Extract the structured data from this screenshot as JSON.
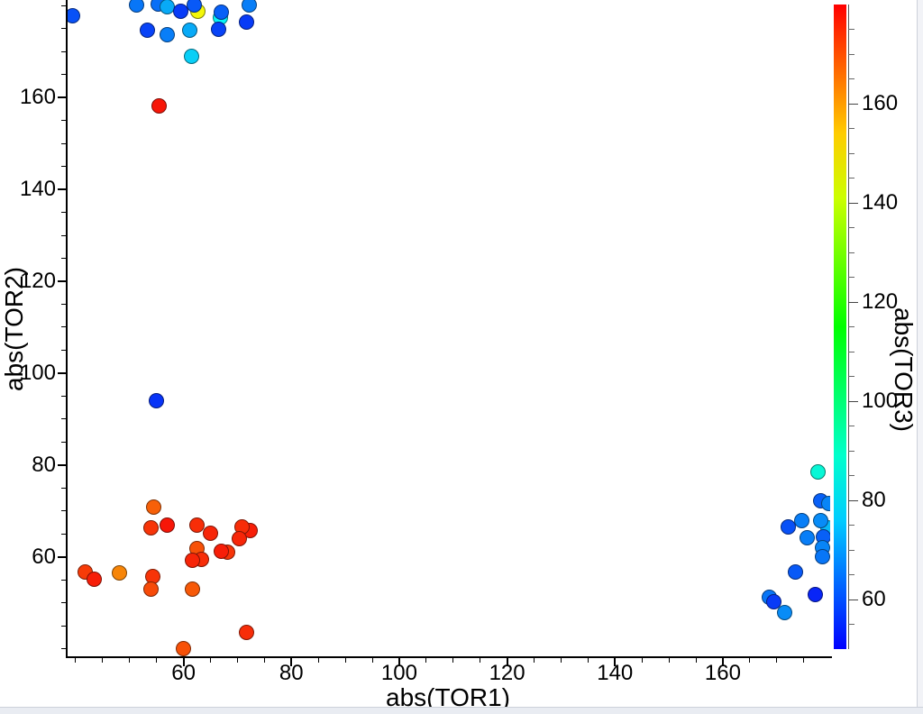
{
  "chart_data": {
    "type": "scatter",
    "title": "",
    "xlabel": "abs(TOR1)",
    "ylabel": "abs(TOR2)",
    "colorbar_label": "abs(TOR3)",
    "xlim": [
      38.5,
      179.9
    ],
    "ylim": [
      38.2,
      181.2
    ],
    "clim": [
      50,
      180
    ],
    "x_major_ticks": [
      60,
      80,
      100,
      120,
      140,
      160
    ],
    "y_major_ticks": [
      60,
      80,
      100,
      120,
      140,
      160
    ],
    "colorbar_major_ticks": [
      60,
      80,
      100,
      120,
      140,
      160
    ],
    "minor_tick_step": 5,
    "grid": false,
    "legend": "none",
    "marker_diameter_px": 17,
    "colormap": "rainbow (blue=50 to red=180)",
    "points": [
      {
        "x": 62.7,
        "y": 178.8,
        "c": 147
      },
      {
        "x": 66.9,
        "y": 177.3,
        "c": 82
      },
      {
        "x": 39.4,
        "y": 177.8,
        "c": 60
      },
      {
        "x": 51.3,
        "y": 180.2,
        "c": 65
      },
      {
        "x": 55.3,
        "y": 180.4,
        "c": 64
      },
      {
        "x": 57.0,
        "y": 179.8,
        "c": 72
      },
      {
        "x": 62.0,
        "y": 180.2,
        "c": 61
      },
      {
        "x": 59.5,
        "y": 178.8,
        "c": 57
      },
      {
        "x": 67.0,
        "y": 178.6,
        "c": 62
      },
      {
        "x": 72.1,
        "y": 180.2,
        "c": 66
      },
      {
        "x": 71.7,
        "y": 176.3,
        "c": 57
      },
      {
        "x": 53.3,
        "y": 174.7,
        "c": 58
      },
      {
        "x": 57.0,
        "y": 173.7,
        "c": 66
      },
      {
        "x": 61.2,
        "y": 174.7,
        "c": 72
      },
      {
        "x": 66.5,
        "y": 174.9,
        "c": 58
      },
      {
        "x": 61.5,
        "y": 169.0,
        "c": 77
      },
      {
        "x": 55.5,
        "y": 158.2,
        "c": 178
      },
      {
        "x": 55.0,
        "y": 94.1,
        "c": 56
      },
      {
        "x": 54.5,
        "y": 70.8,
        "c": 168
      },
      {
        "x": 54.0,
        "y": 66.3,
        "c": 174
      },
      {
        "x": 57.0,
        "y": 66.9,
        "c": 178
      },
      {
        "x": 62.5,
        "y": 66.9,
        "c": 175
      },
      {
        "x": 65.0,
        "y": 65.1,
        "c": 176
      },
      {
        "x": 72.4,
        "y": 65.7,
        "c": 177
      },
      {
        "x": 70.9,
        "y": 66.5,
        "c": 175
      },
      {
        "x": 70.4,
        "y": 63.9,
        "c": 176
      },
      {
        "x": 62.5,
        "y": 61.8,
        "c": 170
      },
      {
        "x": 63.4,
        "y": 59.4,
        "c": 175
      },
      {
        "x": 61.7,
        "y": 59.2,
        "c": 176
      },
      {
        "x": 68.2,
        "y": 61.0,
        "c": 174
      },
      {
        "x": 67.0,
        "y": 61.2,
        "c": 177
      },
      {
        "x": 41.7,
        "y": 56.7,
        "c": 173
      },
      {
        "x": 43.4,
        "y": 55.1,
        "c": 177
      },
      {
        "x": 48.1,
        "y": 56.5,
        "c": 163
      },
      {
        "x": 54.3,
        "y": 55.7,
        "c": 174
      },
      {
        "x": 54.0,
        "y": 53.1,
        "c": 171
      },
      {
        "x": 61.7,
        "y": 53.1,
        "c": 169
      },
      {
        "x": 71.7,
        "y": 43.5,
        "c": 175
      },
      {
        "x": 60.0,
        "y": 40.0,
        "c": 170
      },
      {
        "x": 177.6,
        "y": 78.6,
        "c": 87
      },
      {
        "x": 178.2,
        "y": 72.2,
        "c": 62
      },
      {
        "x": 179.6,
        "y": 71.6,
        "c": 67
      },
      {
        "x": 179.4,
        "y": 66.3,
        "c": 74
      },
      {
        "x": 178.1,
        "y": 68.0,
        "c": 68
      },
      {
        "x": 174.6,
        "y": 68.0,
        "c": 66
      },
      {
        "x": 172.2,
        "y": 66.5,
        "c": 60
      },
      {
        "x": 178.6,
        "y": 64.3,
        "c": 62
      },
      {
        "x": 175.6,
        "y": 64.1,
        "c": 66
      },
      {
        "x": 178.4,
        "y": 62.0,
        "c": 67
      },
      {
        "x": 178.4,
        "y": 60.0,
        "c": 65
      },
      {
        "x": 173.4,
        "y": 56.7,
        "c": 61
      },
      {
        "x": 177.1,
        "y": 51.8,
        "c": 54
      },
      {
        "x": 168.7,
        "y": 51.2,
        "c": 65
      },
      {
        "x": 169.4,
        "y": 50.2,
        "c": 57
      },
      {
        "x": 171.4,
        "y": 48.0,
        "c": 68
      }
    ]
  }
}
